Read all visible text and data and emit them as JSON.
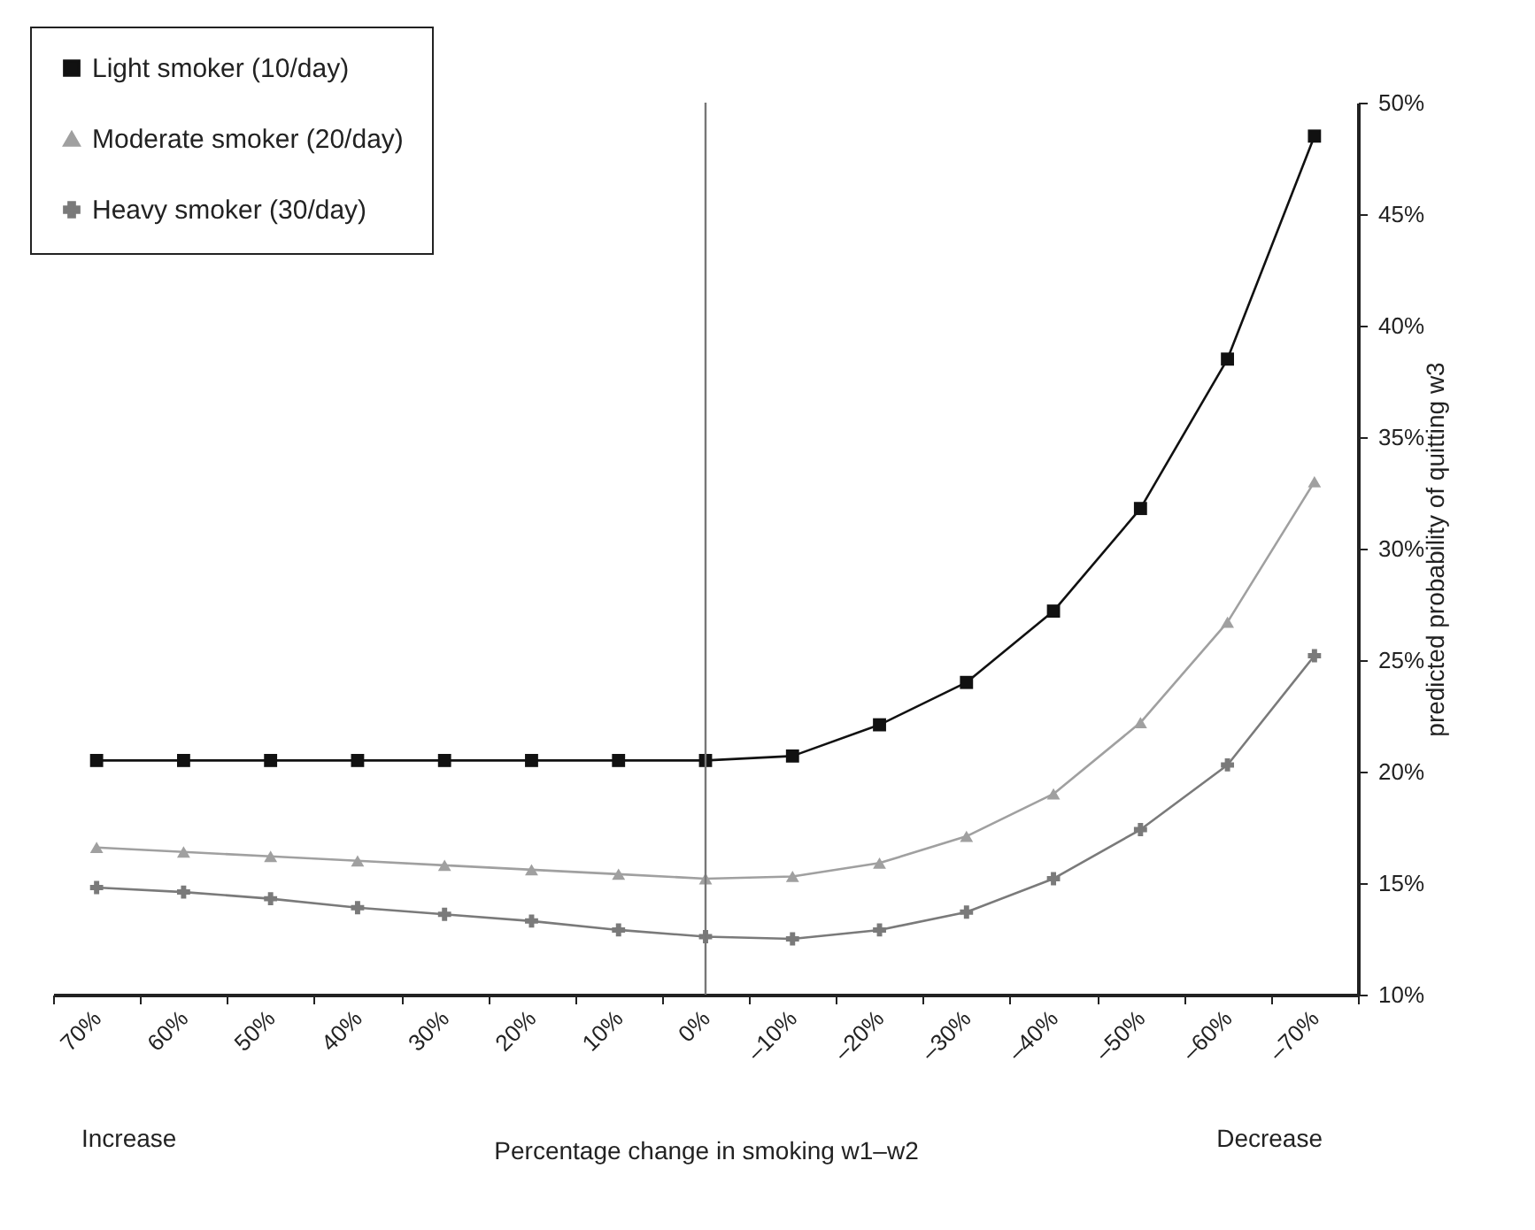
{
  "chart_data": {
    "type": "line",
    "xlabel": "Percentage change in smoking w1–w2",
    "ylabel": "predicted probability of quitting w3",
    "annotations": [
      "Increase",
      "Decrease"
    ],
    "categories": [
      "70%",
      "60%",
      "50%",
      "40%",
      "30%",
      "20%",
      "10%",
      "0%",
      "–10%",
      "–20%",
      "–30%",
      "–40%",
      "–50%",
      "–60%",
      "–70%"
    ],
    "series": [
      {
        "name": "Light smoker (10/day)",
        "color": "#111111",
        "marker": "square",
        "values": [
          20.5,
          20.5,
          20.5,
          20.5,
          20.5,
          20.5,
          20.5,
          20.5,
          20.7,
          22.1,
          24.0,
          27.2,
          31.8,
          38.5,
          48.5
        ]
      },
      {
        "name": "Moderate smoker (20/day)",
        "color": "#a0a0a0",
        "marker": "triangle",
        "values": [
          16.6,
          16.4,
          16.2,
          16.0,
          15.8,
          15.6,
          15.4,
          15.2,
          15.3,
          15.9,
          17.1,
          19.0,
          22.2,
          26.7,
          33.0
        ]
      },
      {
        "name": "Heavy smoker (30/day)",
        "color": "#7a7a7a",
        "marker": "cross",
        "values": [
          14.8,
          14.6,
          14.3,
          13.9,
          13.6,
          13.3,
          12.9,
          12.6,
          12.5,
          12.9,
          13.7,
          15.2,
          17.4,
          20.3,
          25.2
        ]
      }
    ],
    "ylim": [
      10,
      50
    ],
    "yticks": [
      {
        "value": 10,
        "label": "10%"
      },
      {
        "value": 15,
        "label": "15%"
      },
      {
        "value": 20,
        "label": "20%"
      },
      {
        "value": 25,
        "label": "25%"
      },
      {
        "value": 30,
        "label": "30%"
      },
      {
        "value": 35,
        "label": "35%"
      },
      {
        "value": 40,
        "label": "40%"
      },
      {
        "value": 45,
        "label": "45%"
      },
      {
        "value": 50,
        "label": "50%"
      }
    ],
    "legend": "top left",
    "grid": false,
    "ref_lines": [
      {
        "axis": "x",
        "value": "0%",
        "color": "#777777"
      }
    ]
  }
}
